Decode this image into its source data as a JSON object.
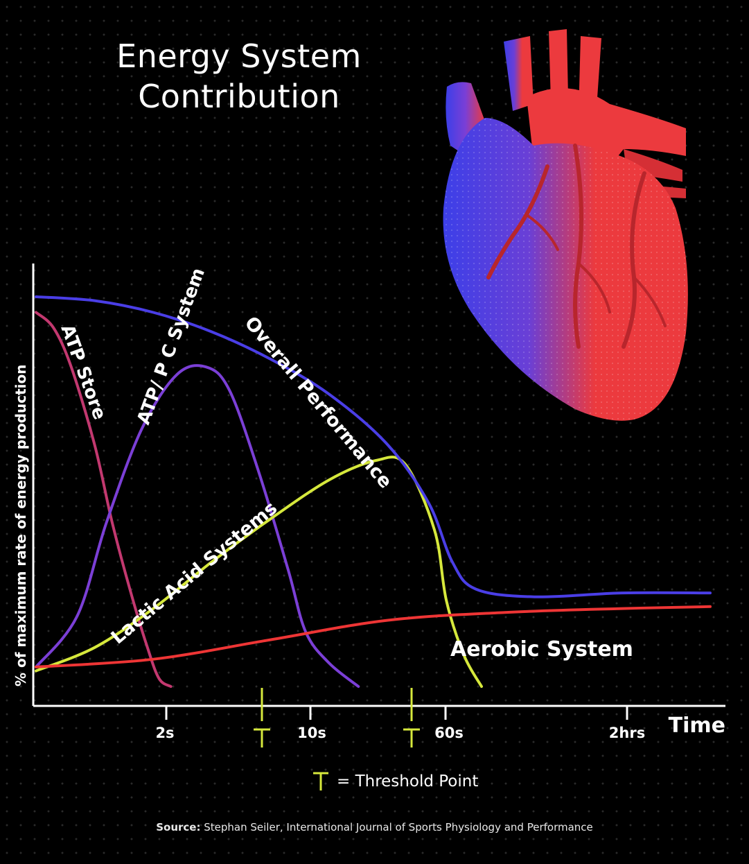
{
  "title_lines": [
    "Energy System",
    "Contribution"
  ],
  "ylabel": "% of maximum rate of energy production",
  "legend": {
    "symbol": "T",
    "label": "= Threshold Point"
  },
  "source": {
    "label": "Source:",
    "text": "Stephan Seiler, International Journal of Sports Physiology and Performance"
  },
  "colors": {
    "atp_store": "#c2386f",
    "atp_pc": "#7b3fd6",
    "lactic": "#d6e83c",
    "aerobic": "#ee3535",
    "overall": "#4a3ee6",
    "threshold": "#d6e83c",
    "heart_red": "#ec3a3e",
    "heart_blue": "#3c3fe8"
  },
  "chart_data": {
    "type": "line",
    "title": "Energy System Contribution",
    "xlabel": "Time",
    "ylabel": "% of maximum rate of energy production",
    "x_ticks": [
      "2s",
      "10s",
      "60s",
      "2hrs"
    ],
    "threshold_points": [
      "between 2s and 10s",
      "just before 60s"
    ],
    "series": [
      {
        "name": "ATP Store",
        "color": "#c2386f",
        "points": [
          [
            0,
            96
          ],
          [
            0.3,
            92
          ],
          [
            0.6,
            82
          ],
          [
            1,
            62
          ],
          [
            1.3,
            42
          ],
          [
            1.6,
            25
          ],
          [
            1.9,
            10
          ],
          [
            2.1,
            2
          ],
          [
            2.3,
            0
          ]
        ]
      },
      {
        "name": "ATP/ PC System",
        "color": "#7b3fd6",
        "points": [
          [
            0,
            5
          ],
          [
            0.7,
            18
          ],
          [
            1.2,
            42
          ],
          [
            1.8,
            66
          ],
          [
            2.4,
            80
          ],
          [
            2.9,
            82
          ],
          [
            3.3,
            76
          ],
          [
            3.8,
            55
          ],
          [
            4.3,
            30
          ],
          [
            4.6,
            14
          ],
          [
            5,
            6
          ],
          [
            5.5,
            0
          ]
        ]
      },
      {
        "name": "Lactic Acid Systems",
        "color": "#d6e83c",
        "points": [
          [
            0,
            4
          ],
          [
            1,
            10
          ],
          [
            2,
            20
          ],
          [
            3,
            32
          ],
          [
            4,
            43
          ],
          [
            5,
            53
          ],
          [
            5.8,
            58
          ],
          [
            6.3,
            57
          ],
          [
            6.8,
            40
          ],
          [
            7,
            22
          ],
          [
            7.3,
            8
          ],
          [
            7.6,
            0
          ]
        ]
      },
      {
        "name": "Aerobic System",
        "color": "#ee3535",
        "points": [
          [
            0,
            5
          ],
          [
            2,
            7
          ],
          [
            4,
            12
          ],
          [
            6,
            17
          ],
          [
            8,
            19
          ],
          [
            10,
            20
          ],
          [
            11.5,
            20.5
          ]
        ]
      },
      {
        "name": "Overall Performance",
        "color": "#4a3ee6",
        "points": [
          [
            0,
            100
          ],
          [
            1,
            99
          ],
          [
            2,
            96
          ],
          [
            3,
            91
          ],
          [
            4,
            84
          ],
          [
            5,
            75
          ],
          [
            6,
            62
          ],
          [
            6.7,
            47
          ],
          [
            7.1,
            32
          ],
          [
            7.5,
            25
          ],
          [
            8.5,
            23
          ],
          [
            10,
            24
          ],
          [
            11.5,
            24
          ]
        ]
      }
    ],
    "curve_labels": [
      "ATP Store",
      "ATP/ P C System",
      "Overall Performance",
      "Lactic Acid Systems",
      "Aerobic System"
    ],
    "grid": false,
    "legend_position": "bottom-center"
  }
}
